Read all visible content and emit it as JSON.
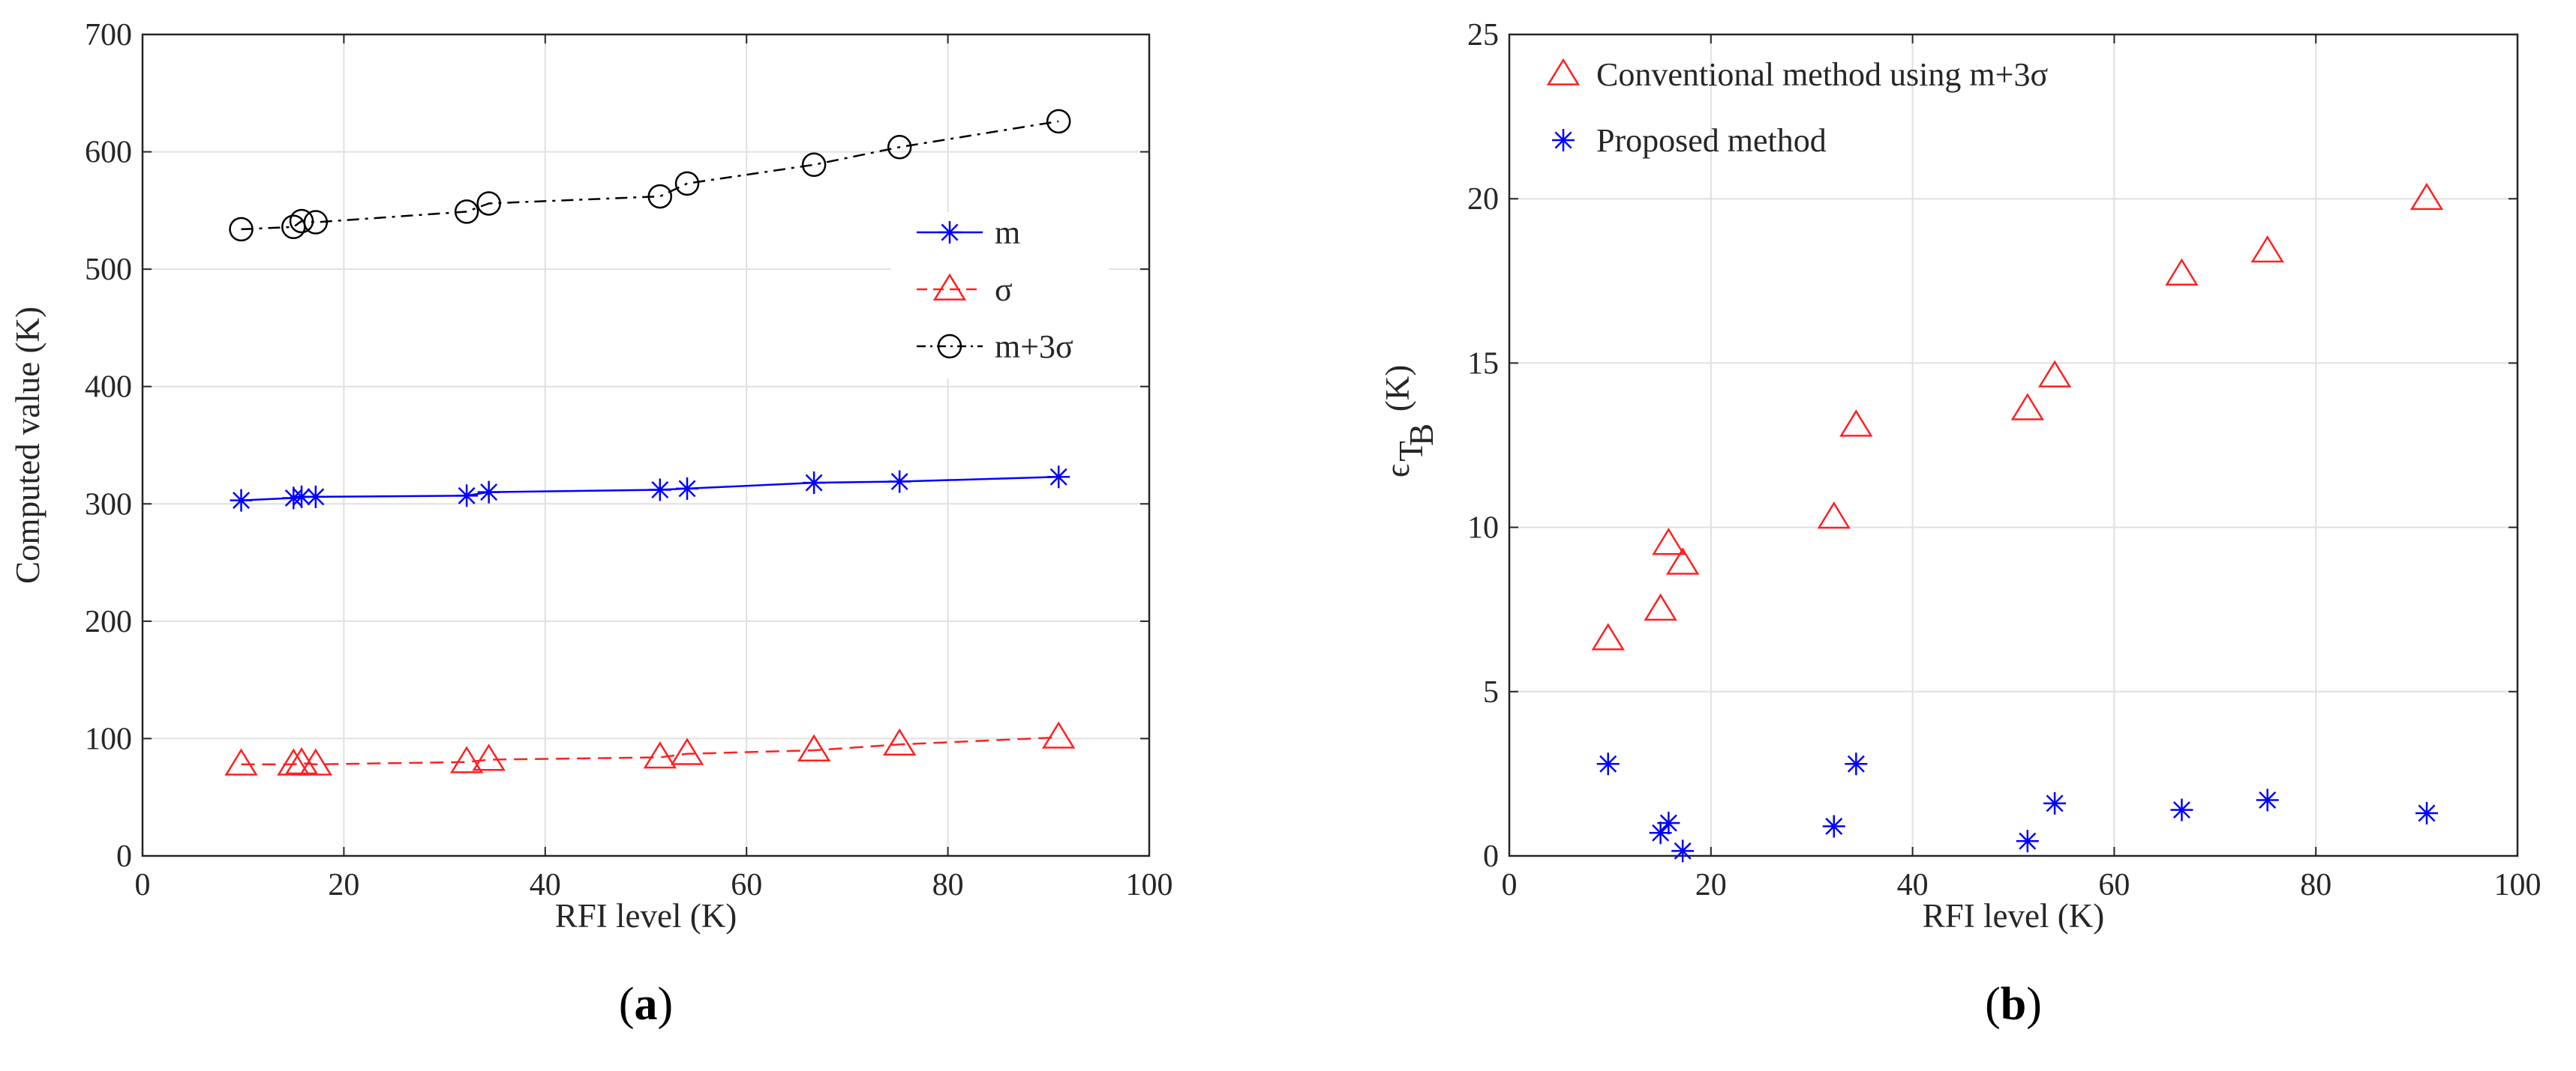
{
  "chart_data": [
    {
      "type": "line",
      "panel_label": "a",
      "title": "",
      "xlabel": "RFI level (K)",
      "ylabel": "Computed value (K)",
      "xlim": [
        0,
        100
      ],
      "ylim": [
        0,
        700
      ],
      "xticks": [
        0,
        20,
        40,
        60,
        80,
        100
      ],
      "yticks": [
        0,
        100,
        200,
        300,
        400,
        500,
        600,
        700
      ],
      "grid": true,
      "legend_position": "right",
      "x": [
        9.8,
        15.0,
        15.8,
        17.2,
        32.2,
        34.4,
        51.4,
        54.1,
        66.7,
        75.2,
        91.0
      ],
      "series": [
        {
          "name": "m",
          "color": "#0000ff",
          "dash": "solid",
          "marker": "asterisk",
          "values": [
            303,
            305,
            306,
            306,
            307,
            310,
            312,
            313,
            318,
            319,
            323
          ]
        },
        {
          "name": "σ",
          "color": "#ff2020",
          "dash": "dashed",
          "marker": "triangle",
          "values": [
            78,
            78,
            79,
            78,
            80,
            82,
            84,
            87,
            90,
            95,
            101
          ]
        },
        {
          "name": "m+3σ",
          "color": "#000000",
          "dash": "dashdot",
          "marker": "circle",
          "values": [
            534,
            536,
            541,
            540,
            549,
            556,
            562,
            573,
            589,
            604,
            626
          ]
        }
      ]
    },
    {
      "type": "scatter",
      "panel_label": "b",
      "title": "",
      "xlabel": "RFI level (K)",
      "ylabel_symbol": "ϵ",
      "ylabel_sub": "T",
      "ylabel_subsub": "B",
      "ylabel_unit": "(K)",
      "xlim": [
        0,
        100
      ],
      "ylim": [
        0,
        25
      ],
      "xticks": [
        0,
        20,
        40,
        60,
        80,
        100
      ],
      "yticks": [
        0,
        5,
        10,
        15,
        20,
        25
      ],
      "grid": true,
      "legend_position": "top-left",
      "x": [
        9.8,
        15.0,
        15.8,
        17.2,
        32.2,
        34.4,
        51.4,
        54.1,
        66.7,
        75.2,
        91.0
      ],
      "series": [
        {
          "name": "Conventional method using m+3σ",
          "color": "#ff2020",
          "marker": "triangle",
          "values": [
            6.6,
            7.5,
            9.5,
            8.9,
            10.3,
            13.1,
            13.6,
            14.6,
            17.7,
            18.4,
            20.0
          ]
        },
        {
          "name": "Proposed method",
          "color": "#0000ff",
          "marker": "asterisk",
          "values": [
            2.8,
            0.7,
            1.0,
            0.15,
            0.9,
            2.8,
            0.45,
            1.6,
            1.4,
            1.7,
            1.3
          ]
        }
      ]
    }
  ]
}
